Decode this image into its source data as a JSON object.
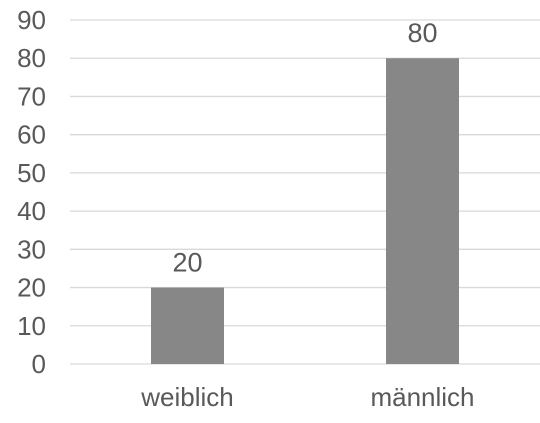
{
  "chart_data": {
    "type": "bar",
    "categories": [
      "weiblich",
      "männlich"
    ],
    "values": [
      20,
      80
    ],
    "data_labels": [
      "20",
      "80"
    ],
    "title": "",
    "xlabel": "",
    "ylabel": "",
    "ylim": [
      0,
      90
    ],
    "yticks": [
      0,
      10,
      20,
      30,
      40,
      50,
      60,
      70,
      80,
      90
    ],
    "grid": true,
    "legend": "none",
    "colors": {
      "bar": "#878787",
      "grid": "#d9d9d9",
      "text": "#595959"
    }
  }
}
